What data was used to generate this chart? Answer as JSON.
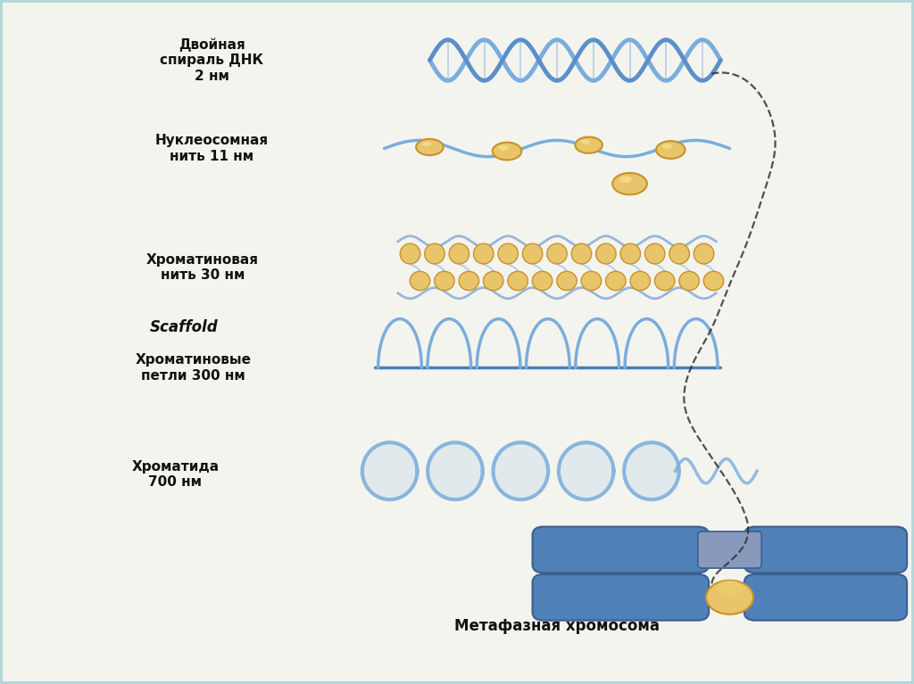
{
  "background_color": "#b2d8d8",
  "panel_color": "#f4f4ef",
  "blue_dna": "#5b8fc9",
  "blue_light": "#7aaddd",
  "blue_mid": "#4a7fb5",
  "gold_color": "#c8922a",
  "gold_light": "#e8c56a",
  "text_color": "#111111",
  "labels": {
    "dna_helix": "Двойная\nспираль ДНК\n2 нм",
    "nucleosome": "Нуклеосомная\nнить 11 нм",
    "chromatin_fiber": "Хроматиновая\nнить 30 нм",
    "scaffold": "Scaffold",
    "chromatin_loops": "Хроматиновые\nпетли 300 нм",
    "chromatid": "Хроматида\n700 нм",
    "chromosome": "Метафазная хромосома"
  },
  "figsize": [
    10.24,
    7.67
  ],
  "dpi": 100
}
